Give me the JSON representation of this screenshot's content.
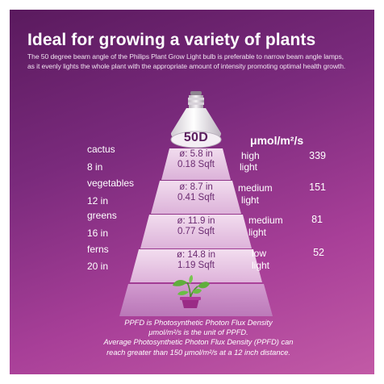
{
  "title": "Ideal for growing a variety of plants",
  "description": [
    "The 50 degree beam angle of the Philips Plant Grow Light bulb is preferable to narrow beam angle lamps,",
    "as it evenly lights the whole plant with the appropriate amount of intensity promoting optimal health growth."
  ],
  "bulb_label": "50D",
  "unit_header": "μmol/m²/s",
  "rows": [
    {
      "plant": "cactus",
      "distance": "8 in",
      "diameter": "ø: 5.8 in",
      "area": "0.18 Sqft",
      "level_line1": "high",
      "level_line2": "light",
      "value": "339"
    },
    {
      "plant": "vegetables",
      "distance": "12 in",
      "diameter": "ø: 8.7 in",
      "area": "0.41 Sqft",
      "level_line1": "medium",
      "level_line2": "light",
      "value": "151"
    },
    {
      "plant": "greens",
      "distance": "16 in",
      "diameter": "ø: 11.9 in",
      "area": "0.77 Sqft",
      "level_line1": "medium",
      "level_line2": "light",
      "value": "81"
    },
    {
      "plant": "ferns",
      "distance": "20 in",
      "diameter": "ø: 14.8 in",
      "area": "1.19 Sqft",
      "level_line1": "low",
      "level_line2": "light",
      "value": "52"
    }
  ],
  "footnote": [
    "PPFD is Photosynthetic Photon Flux Density",
    "μmol/m²/s is the unit of PPFD.",
    "Average Photosynthetic Photon Flux Density (PPFD) can",
    "reach greater than 150 μmol/m²/s at a 12 inch distance."
  ],
  "colors": {
    "background_top": "#5a1a5e",
    "background_bottom": "#c25aa6",
    "band_text": "#6a2a70",
    "bulb_label": "#5a1e5e",
    "leaf": "#5fae3c",
    "pot": "#9a2b86"
  },
  "icons": [
    "bulb-icon",
    "plant-icon"
  ]
}
